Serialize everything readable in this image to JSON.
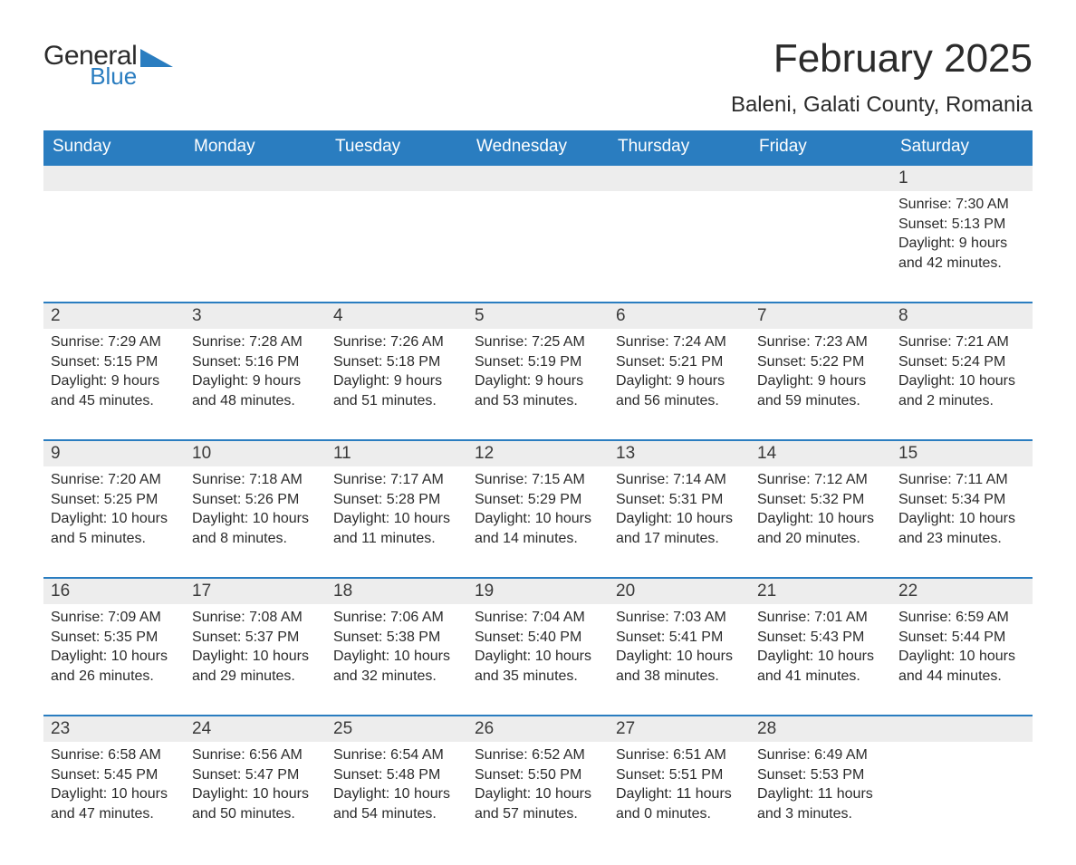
{
  "logo": {
    "text1": "General",
    "text2": "Blue",
    "triangle_color": "#2a7dc0"
  },
  "title": "February 2025",
  "location": "Baleni, Galati County, Romania",
  "colors": {
    "header_bg": "#2a7dc0",
    "header_text": "#ffffff",
    "daynum_bg": "#ededed",
    "week_border": "#2a7dc0",
    "body_text": "#2b2b2b"
  },
  "daynames": [
    "Sunday",
    "Monday",
    "Tuesday",
    "Wednesday",
    "Thursday",
    "Friday",
    "Saturday"
  ],
  "weeks": [
    [
      {
        "n": "",
        "sunrise": "",
        "sunset": "",
        "day1": "",
        "day2": ""
      },
      {
        "n": "",
        "sunrise": "",
        "sunset": "",
        "day1": "",
        "day2": ""
      },
      {
        "n": "",
        "sunrise": "",
        "sunset": "",
        "day1": "",
        "day2": ""
      },
      {
        "n": "",
        "sunrise": "",
        "sunset": "",
        "day1": "",
        "day2": ""
      },
      {
        "n": "",
        "sunrise": "",
        "sunset": "",
        "day1": "",
        "day2": ""
      },
      {
        "n": "",
        "sunrise": "",
        "sunset": "",
        "day1": "",
        "day2": ""
      },
      {
        "n": "1",
        "sunrise": "Sunrise: 7:30 AM",
        "sunset": "Sunset: 5:13 PM",
        "day1": "Daylight: 9 hours",
        "day2": "and 42 minutes."
      }
    ],
    [
      {
        "n": "2",
        "sunrise": "Sunrise: 7:29 AM",
        "sunset": "Sunset: 5:15 PM",
        "day1": "Daylight: 9 hours",
        "day2": "and 45 minutes."
      },
      {
        "n": "3",
        "sunrise": "Sunrise: 7:28 AM",
        "sunset": "Sunset: 5:16 PM",
        "day1": "Daylight: 9 hours",
        "day2": "and 48 minutes."
      },
      {
        "n": "4",
        "sunrise": "Sunrise: 7:26 AM",
        "sunset": "Sunset: 5:18 PM",
        "day1": "Daylight: 9 hours",
        "day2": "and 51 minutes."
      },
      {
        "n": "5",
        "sunrise": "Sunrise: 7:25 AM",
        "sunset": "Sunset: 5:19 PM",
        "day1": "Daylight: 9 hours",
        "day2": "and 53 minutes."
      },
      {
        "n": "6",
        "sunrise": "Sunrise: 7:24 AM",
        "sunset": "Sunset: 5:21 PM",
        "day1": "Daylight: 9 hours",
        "day2": "and 56 minutes."
      },
      {
        "n": "7",
        "sunrise": "Sunrise: 7:23 AM",
        "sunset": "Sunset: 5:22 PM",
        "day1": "Daylight: 9 hours",
        "day2": "and 59 minutes."
      },
      {
        "n": "8",
        "sunrise": "Sunrise: 7:21 AM",
        "sunset": "Sunset: 5:24 PM",
        "day1": "Daylight: 10 hours",
        "day2": "and 2 minutes."
      }
    ],
    [
      {
        "n": "9",
        "sunrise": "Sunrise: 7:20 AM",
        "sunset": "Sunset: 5:25 PM",
        "day1": "Daylight: 10 hours",
        "day2": "and 5 minutes."
      },
      {
        "n": "10",
        "sunrise": "Sunrise: 7:18 AM",
        "sunset": "Sunset: 5:26 PM",
        "day1": "Daylight: 10 hours",
        "day2": "and 8 minutes."
      },
      {
        "n": "11",
        "sunrise": "Sunrise: 7:17 AM",
        "sunset": "Sunset: 5:28 PM",
        "day1": "Daylight: 10 hours",
        "day2": "and 11 minutes."
      },
      {
        "n": "12",
        "sunrise": "Sunrise: 7:15 AM",
        "sunset": "Sunset: 5:29 PM",
        "day1": "Daylight: 10 hours",
        "day2": "and 14 minutes."
      },
      {
        "n": "13",
        "sunrise": "Sunrise: 7:14 AM",
        "sunset": "Sunset: 5:31 PM",
        "day1": "Daylight: 10 hours",
        "day2": "and 17 minutes."
      },
      {
        "n": "14",
        "sunrise": "Sunrise: 7:12 AM",
        "sunset": "Sunset: 5:32 PM",
        "day1": "Daylight: 10 hours",
        "day2": "and 20 minutes."
      },
      {
        "n": "15",
        "sunrise": "Sunrise: 7:11 AM",
        "sunset": "Sunset: 5:34 PM",
        "day1": "Daylight: 10 hours",
        "day2": "and 23 minutes."
      }
    ],
    [
      {
        "n": "16",
        "sunrise": "Sunrise: 7:09 AM",
        "sunset": "Sunset: 5:35 PM",
        "day1": "Daylight: 10 hours",
        "day2": "and 26 minutes."
      },
      {
        "n": "17",
        "sunrise": "Sunrise: 7:08 AM",
        "sunset": "Sunset: 5:37 PM",
        "day1": "Daylight: 10 hours",
        "day2": "and 29 minutes."
      },
      {
        "n": "18",
        "sunrise": "Sunrise: 7:06 AM",
        "sunset": "Sunset: 5:38 PM",
        "day1": "Daylight: 10 hours",
        "day2": "and 32 minutes."
      },
      {
        "n": "19",
        "sunrise": "Sunrise: 7:04 AM",
        "sunset": "Sunset: 5:40 PM",
        "day1": "Daylight: 10 hours",
        "day2": "and 35 minutes."
      },
      {
        "n": "20",
        "sunrise": "Sunrise: 7:03 AM",
        "sunset": "Sunset: 5:41 PM",
        "day1": "Daylight: 10 hours",
        "day2": "and 38 minutes."
      },
      {
        "n": "21",
        "sunrise": "Sunrise: 7:01 AM",
        "sunset": "Sunset: 5:43 PM",
        "day1": "Daylight: 10 hours",
        "day2": "and 41 minutes."
      },
      {
        "n": "22",
        "sunrise": "Sunrise: 6:59 AM",
        "sunset": "Sunset: 5:44 PM",
        "day1": "Daylight: 10 hours",
        "day2": "and 44 minutes."
      }
    ],
    [
      {
        "n": "23",
        "sunrise": "Sunrise: 6:58 AM",
        "sunset": "Sunset: 5:45 PM",
        "day1": "Daylight: 10 hours",
        "day2": "and 47 minutes."
      },
      {
        "n": "24",
        "sunrise": "Sunrise: 6:56 AM",
        "sunset": "Sunset: 5:47 PM",
        "day1": "Daylight: 10 hours",
        "day2": "and 50 minutes."
      },
      {
        "n": "25",
        "sunrise": "Sunrise: 6:54 AM",
        "sunset": "Sunset: 5:48 PM",
        "day1": "Daylight: 10 hours",
        "day2": "and 54 minutes."
      },
      {
        "n": "26",
        "sunrise": "Sunrise: 6:52 AM",
        "sunset": "Sunset: 5:50 PM",
        "day1": "Daylight: 10 hours",
        "day2": "and 57 minutes."
      },
      {
        "n": "27",
        "sunrise": "Sunrise: 6:51 AM",
        "sunset": "Sunset: 5:51 PM",
        "day1": "Daylight: 11 hours",
        "day2": "and 0 minutes."
      },
      {
        "n": "28",
        "sunrise": "Sunrise: 6:49 AM",
        "sunset": "Sunset: 5:53 PM",
        "day1": "Daylight: 11 hours",
        "day2": "and 3 minutes."
      },
      {
        "n": "",
        "sunrise": "",
        "sunset": "",
        "day1": "",
        "day2": ""
      }
    ]
  ]
}
